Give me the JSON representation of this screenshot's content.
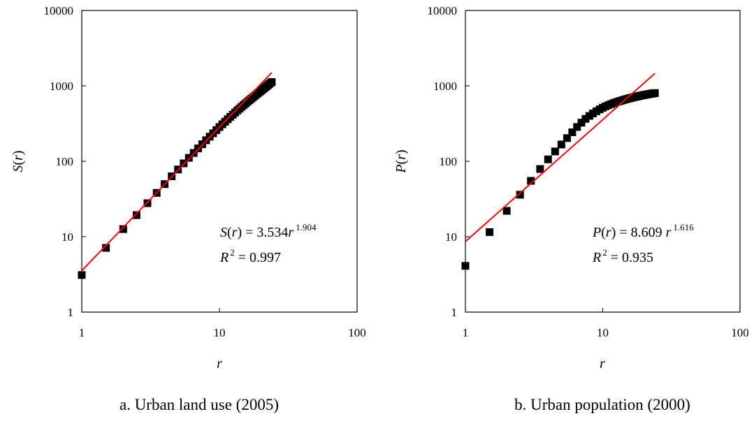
{
  "chart_data": [
    {
      "type": "scatter",
      "caption": "a. Urban land use (2005)",
      "xlabel": "r",
      "ylabel": "S(r)",
      "ylabel_parts": [
        "S",
        "(",
        "r",
        ")"
      ],
      "xscale": "log",
      "yscale": "log",
      "xlim": [
        1,
        100
      ],
      "ylim": [
        1,
        10000
      ],
      "xticks": [
        "1",
        "10",
        "100"
      ],
      "yticks": [
        "1",
        "10",
        "100",
        "1000",
        "10000"
      ],
      "grid": false,
      "marker_color": "#000000",
      "fit_color": "#ff0000",
      "series": [
        {
          "x": [
            1,
            1.5,
            2,
            2.5,
            3,
            3.5,
            4,
            4.5,
            5,
            5.5,
            6,
            6.5,
            7,
            7.5,
            8,
            8.5,
            9,
            9.5,
            10,
            10.5,
            11,
            11.5,
            12,
            12.5,
            13,
            13.5,
            14,
            14.5,
            15,
            15.5,
            16,
            16.5,
            17,
            17.5,
            18,
            18.5,
            19,
            19.5,
            20,
            20.5,
            21,
            21.5,
            22,
            22.5,
            23,
            23.5,
            24
          ],
          "y": [
            3.1,
            7.1,
            12.6,
            19.3,
            27.8,
            38.1,
            49.8,
            63.2,
            77.8,
            93.8,
            111,
            129,
            148,
            168,
            190,
            212,
            235,
            259,
            284,
            309,
            335,
            361,
            388,
            415,
            443,
            471,
            499,
            528,
            557,
            586,
            615,
            645,
            675,
            705,
            735,
            766,
            797,
            828,
            860,
            892,
            924,
            957,
            990,
            1023,
            1057,
            1091,
            1125
          ]
        }
      ],
      "fit": {
        "a": 3.534,
        "b": 1.904,
        "x_range": [
          1,
          24
        ]
      },
      "equation": {
        "lhs_var": "S",
        "lhs_arg": "(",
        "lhs_r": "r",
        "lhs_close": ")",
        "eq_text": " = 3.534",
        "rhs_r": "r",
        "exponent": "1.904",
        "r2_var": "R",
        "r2_exp": "2",
        "r2_text": " = 0.997"
      }
    },
    {
      "type": "scatter",
      "caption": "b. Urban population (2000)",
      "xlabel": "r",
      "ylabel": "P(r)",
      "ylabel_parts": [
        "P",
        "(",
        "r",
        ")"
      ],
      "xscale": "log",
      "yscale": "log",
      "xlim": [
        1,
        100
      ],
      "ylim": [
        1,
        10000
      ],
      "xticks": [
        "1",
        "10",
        "100"
      ],
      "yticks": [
        "1",
        "10",
        "100",
        "1000",
        "10000"
      ],
      "grid": false,
      "marker_color": "#000000",
      "fit_color": "#ff0000",
      "series": [
        {
          "x": [
            1,
            1.5,
            2,
            2.5,
            3,
            3.5,
            4,
            4.5,
            5,
            5.5,
            6,
            6.5,
            7,
            7.5,
            8,
            8.5,
            9,
            9.5,
            10,
            10.5,
            11,
            11.5,
            12,
            12.5,
            13,
            13.5,
            14,
            14.5,
            15,
            15.5,
            16,
            16.5,
            17,
            17.5,
            18,
            18.5,
            19,
            19.5,
            20,
            20.5,
            21,
            21.5,
            22,
            22.5,
            23,
            23.5,
            24
          ],
          "y": [
            4.1,
            11.5,
            22,
            36,
            55,
            79,
            106,
            135,
            167,
            203,
            242,
            285,
            325,
            365,
            400,
            430,
            460,
            488,
            513,
            535,
            555,
            573,
            590,
            606,
            620,
            634,
            647,
            659,
            670,
            681,
            691,
            701,
            710,
            719,
            727,
            735,
            743,
            750,
            757,
            764,
            770,
            776,
            782,
            788,
            793,
            798,
            803
          ]
        }
      ],
      "fit": {
        "a": 8.609,
        "b": 1.616,
        "x_range": [
          1,
          24
        ]
      },
      "equation": {
        "lhs_var": "P",
        "lhs_arg": "(",
        "lhs_r": "r",
        "lhs_close": ")",
        "eq_text": " = 8.609 ",
        "rhs_r": "r",
        "exponent": "1.616",
        "r2_var": "R",
        "r2_exp": "2",
        "r2_text": " = 0.935"
      }
    }
  ]
}
